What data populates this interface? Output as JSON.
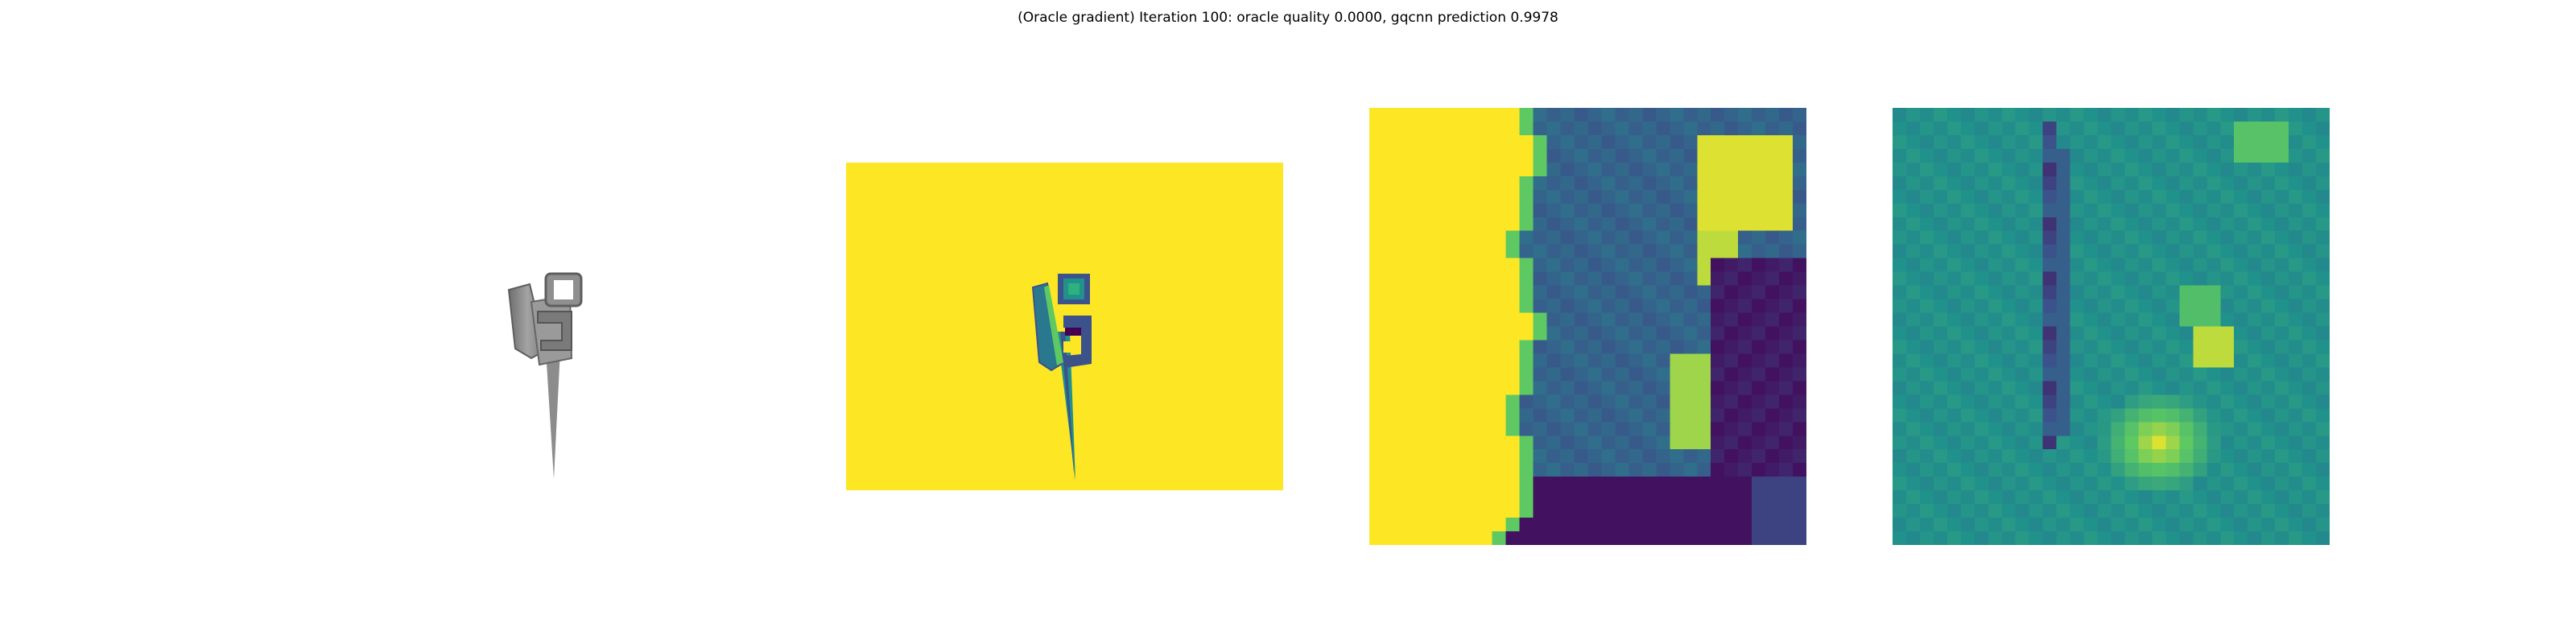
{
  "figure": {
    "title": "(Oracle gradient) Iteration 100: oracle quality 0.0000, gqcnn prediction 0.9978",
    "panels": [
      {
        "kind": "rendered-object",
        "description_icon": "mesh-render"
      },
      {
        "kind": "depth-image",
        "colormap": "viridis"
      },
      {
        "kind": "depth-crop",
        "colormap": "viridis",
        "grid_cells": 32
      },
      {
        "kind": "gradient-map",
        "colormap": "viridis",
        "grid_cells": 32
      }
    ]
  },
  "colors": {
    "background": "#ffffff",
    "viridis_yellow": "#fde725",
    "viridis_teal": "#21918c",
    "viridis_purple": "#440154",
    "viridis_blue": "#3b528b",
    "viridis_green": "#5ec962",
    "object_gray": "#8a8a8a"
  }
}
